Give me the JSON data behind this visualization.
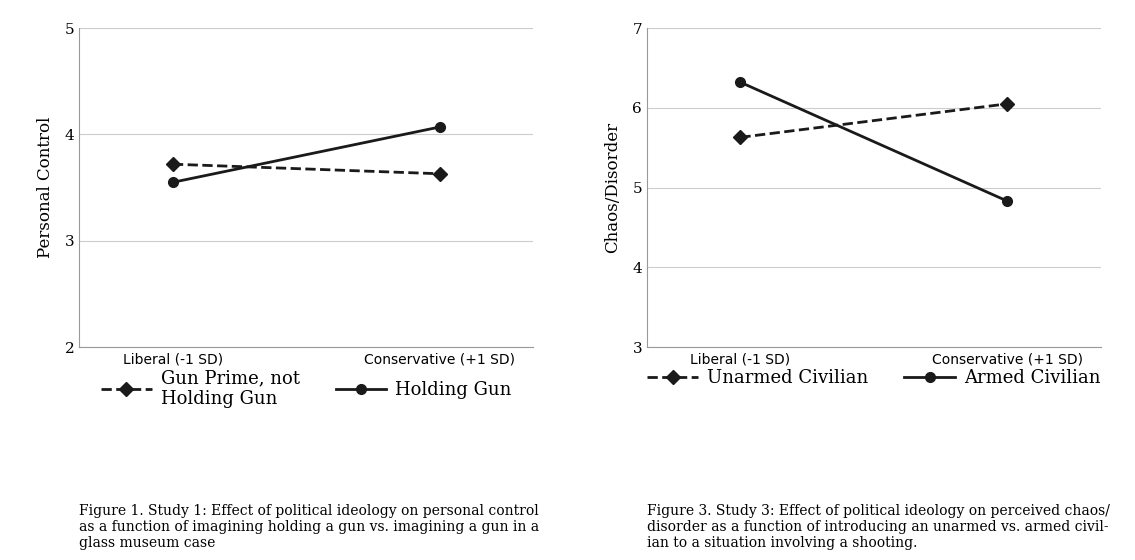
{
  "fig1": {
    "x_labels": [
      "Liberal (-1 SD)",
      "Conservative (+1 SD)"
    ],
    "x_positions": [
      0,
      1
    ],
    "dashed_line": [
      3.72,
      3.63
    ],
    "solid_line": [
      3.55,
      4.07
    ],
    "ylabel": "Personal Control",
    "ylim": [
      2,
      5
    ],
    "yticks": [
      2,
      3,
      4,
      5
    ],
    "legend_dashed": "Gun Prime, not\nHolding Gun",
    "legend_solid": "Holding Gun",
    "caption": "Figure 1. Study 1: Effect of political ideology on personal control\nas a function of imagining holding a gun vs. imagining a gun in a\nglass museum case"
  },
  "fig2": {
    "x_labels": [
      "Liberal (-1 SD)",
      "Conservative (+1 SD)"
    ],
    "x_positions": [
      0,
      1
    ],
    "dashed_line": [
      5.63,
      6.05
    ],
    "solid_line": [
      6.32,
      4.83
    ],
    "ylabel": "Chaos/Disorder",
    "ylim": [
      3,
      7
    ],
    "yticks": [
      3,
      4,
      5,
      6,
      7
    ],
    "legend_dashed": "Unarmed Civilian",
    "legend_solid": "Armed Civilian",
    "caption": "Figure 3. Study 3: Effect of political ideology on perceived chaos/\ndisorder as a function of introducing an unarmed vs. armed civil-\nian to a situation involving a shooting."
  },
  "line_color": "#1a1a1a",
  "marker_solid": "o",
  "marker_dashed": "D",
  "markersize": 7,
  "linewidth": 2.0,
  "font_family": "serif",
  "axis_label_fontsize": 12,
  "tick_fontsize": 11,
  "legend_fontsize": 13,
  "caption_fontsize": 10,
  "xtick_fontsize": 12
}
